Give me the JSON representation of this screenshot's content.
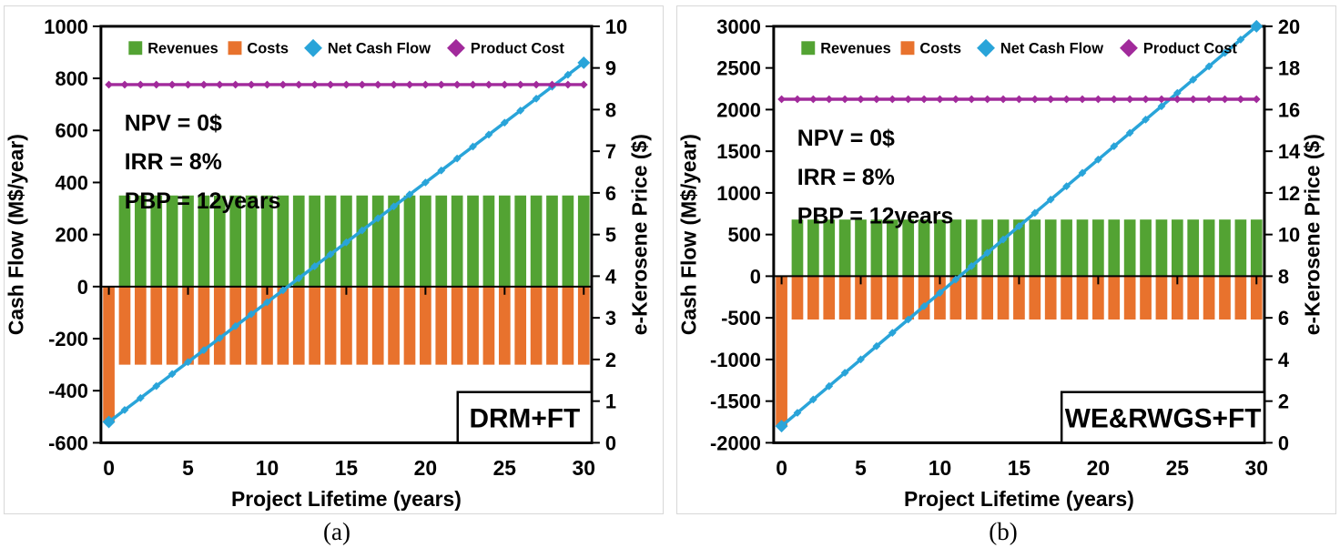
{
  "colors": {
    "revenues": "#53A333",
    "costs": "#E8722D",
    "net_cash_flow": "#29A4D9",
    "product_cost": "#A12A9B",
    "axis": "#000000",
    "panel_border": "#D8D8D8"
  },
  "chart_data": [
    {
      "type": "combo-bar-line",
      "corner_label": "DRM+FT",
      "caption": "(a)",
      "xlabel": "Project Lifetime (years)",
      "x": [
        0,
        1,
        2,
        3,
        4,
        5,
        6,
        7,
        8,
        9,
        10,
        11,
        12,
        13,
        14,
        15,
        16,
        17,
        18,
        19,
        20,
        21,
        22,
        23,
        24,
        25,
        26,
        27,
        28,
        29,
        30
      ],
      "x_ticks": [
        0,
        5,
        10,
        15,
        20,
        25,
        30
      ],
      "left_axis": {
        "label": "Cash Flow (M$/year)",
        "min": -600,
        "max": 1000,
        "step": 200
      },
      "right_axis": {
        "label": "e-Kerosene Price ($)",
        "min": 0,
        "max": 10,
        "step": 1
      },
      "annotation": [
        "NPV = 0$",
        "IRR = 8%",
        "PBP = 12years"
      ],
      "legend": [
        {
          "label": "Revenues",
          "marker": "square",
          "color": "revenues"
        },
        {
          "label": "Costs",
          "marker": "square",
          "color": "costs"
        },
        {
          "label": "Net Cash Flow",
          "marker": "diamond",
          "color": "net_cash_flow"
        },
        {
          "label": "Product Cost",
          "marker": "diamond",
          "color": "product_cost"
        }
      ],
      "series": [
        {
          "name": "Revenues",
          "type": "bar",
          "axis": "left",
          "color": "revenues",
          "values": [
            0,
            350,
            350,
            350,
            350,
            350,
            350,
            350,
            350,
            350,
            350,
            350,
            350,
            350,
            350,
            350,
            350,
            350,
            350,
            350,
            350,
            350,
            350,
            350,
            350,
            350,
            350,
            350,
            350,
            350,
            350
          ]
        },
        {
          "name": "Costs",
          "type": "bar",
          "axis": "left",
          "color": "costs",
          "values": [
            -520,
            -300,
            -300,
            -300,
            -300,
            -300,
            -300,
            -300,
            -300,
            -300,
            -300,
            -300,
            -300,
            -300,
            -300,
            -300,
            -300,
            -300,
            -300,
            -300,
            -300,
            -300,
            -300,
            -300,
            -300,
            -300,
            -300,
            -300,
            -300,
            -300,
            -300
          ]
        },
        {
          "name": "Net Cash Flow",
          "type": "line",
          "axis": "left",
          "color": "net_cash_flow",
          "endpoint_markers": true,
          "values": [
            -520,
            -474,
            -428,
            -382,
            -336,
            -290,
            -244,
            -198,
            -152,
            -106,
            -60,
            -14,
            32,
            78,
            124,
            170,
            216,
            262,
            308,
            354,
            400,
            446,
            492,
            538,
            584,
            630,
            676,
            722,
            768,
            814,
            860
          ]
        },
        {
          "name": "Product Cost",
          "type": "line",
          "axis": "right",
          "color": "product_cost",
          "constant": 8.6
        }
      ]
    },
    {
      "type": "combo-bar-line",
      "corner_label": "WE&RWGS+FT",
      "caption": "(b)",
      "xlabel": "Project Lifetime (years)",
      "x": [
        0,
        1,
        2,
        3,
        4,
        5,
        6,
        7,
        8,
        9,
        10,
        11,
        12,
        13,
        14,
        15,
        16,
        17,
        18,
        19,
        20,
        21,
        22,
        23,
        24,
        25,
        26,
        27,
        28,
        29,
        30
      ],
      "x_ticks": [
        0,
        5,
        10,
        15,
        20,
        25,
        30
      ],
      "left_axis": {
        "label": "Cash Flow (M$/year)",
        "min": -2000,
        "max": 3000,
        "step": 500
      },
      "right_axis": {
        "label": "e-Kerosene Price ($)",
        "min": 0,
        "max": 20,
        "step": 2
      },
      "annotation": [
        "NPV = 0$",
        "IRR = 8%",
        "PBP = 12years"
      ],
      "legend": [
        {
          "label": "Revenues",
          "marker": "square",
          "color": "revenues"
        },
        {
          "label": "Costs",
          "marker": "square",
          "color": "costs"
        },
        {
          "label": "Net Cash Flow",
          "marker": "diamond",
          "color": "net_cash_flow"
        },
        {
          "label": "Product Cost",
          "marker": "diamond",
          "color": "product_cost"
        }
      ],
      "series": [
        {
          "name": "Revenues",
          "type": "bar",
          "axis": "left",
          "color": "revenues",
          "values": [
            0,
            680,
            680,
            680,
            680,
            680,
            680,
            680,
            680,
            680,
            680,
            680,
            680,
            680,
            680,
            680,
            680,
            680,
            680,
            680,
            680,
            680,
            680,
            680,
            680,
            680,
            680,
            680,
            680,
            680,
            680
          ]
        },
        {
          "name": "Costs",
          "type": "bar",
          "axis": "left",
          "color": "costs",
          "values": [
            -1800,
            -520,
            -520,
            -520,
            -520,
            -520,
            -520,
            -520,
            -520,
            -520,
            -520,
            -520,
            -520,
            -520,
            -520,
            -520,
            -520,
            -520,
            -520,
            -520,
            -520,
            -520,
            -520,
            -520,
            -520,
            -520,
            -520,
            -520,
            -520,
            -520,
            -520
          ]
        },
        {
          "name": "Net Cash Flow",
          "type": "line",
          "axis": "left",
          "color": "net_cash_flow",
          "endpoint_markers": true,
          "values": [
            -1800,
            -1640,
            -1480,
            -1320,
            -1160,
            -1000,
            -840,
            -680,
            -520,
            -360,
            -200,
            -40,
            120,
            280,
            440,
            600,
            760,
            920,
            1080,
            1240,
            1400,
            1560,
            1720,
            1880,
            2040,
            2200,
            2360,
            2520,
            2680,
            2840,
            3000
          ]
        },
        {
          "name": "Product Cost",
          "type": "line",
          "axis": "right",
          "color": "product_cost",
          "constant": 16.5
        }
      ]
    }
  ]
}
